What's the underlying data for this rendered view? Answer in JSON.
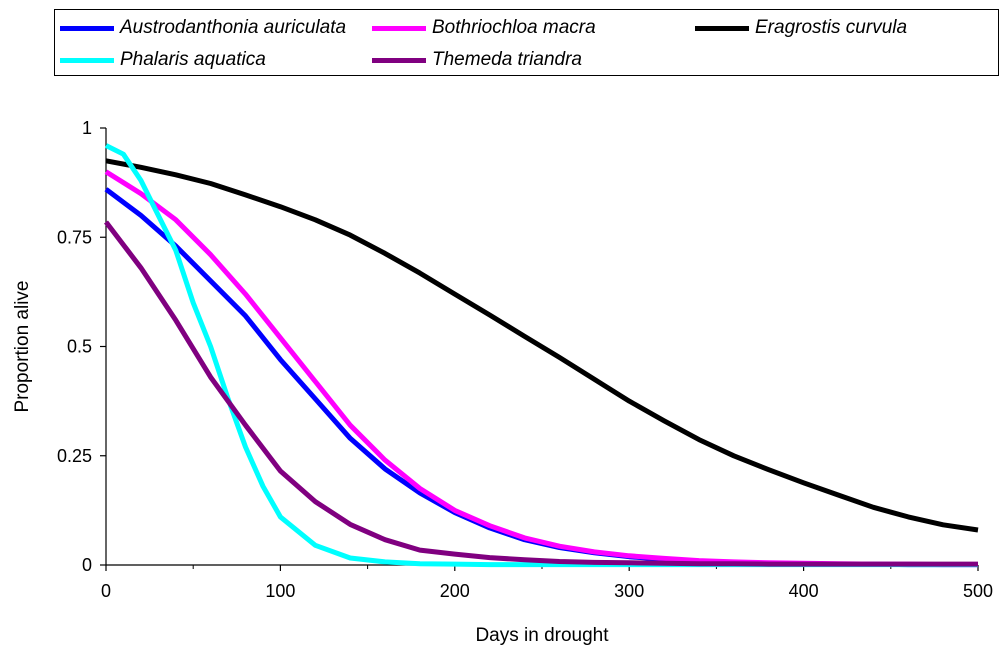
{
  "chart_data": {
    "type": "line",
    "xlabel": "Days in drought",
    "ylabel": "Proportion alive",
    "xlim": [
      0,
      500
    ],
    "ylim": [
      0,
      1
    ],
    "x_ticks": [
      0,
      100,
      200,
      300,
      400,
      500
    ],
    "y_ticks": [
      0,
      0.25,
      0.5,
      0.75,
      1
    ],
    "x_tick_labels": [
      "0",
      "100",
      "200",
      "300",
      "400",
      "500"
    ],
    "y_tick_labels": [
      "0",
      "0.25",
      "0.5",
      "0.75",
      "1"
    ],
    "grid": false,
    "legend_position": "top",
    "series": [
      {
        "name": "Austrodanthonia auriculata",
        "color": "#0000ff",
        "x": [
          0,
          20,
          40,
          60,
          80,
          100,
          120,
          140,
          160,
          180,
          200,
          220,
          240,
          260,
          280,
          300,
          320,
          340,
          360,
          380,
          400,
          420,
          440,
          460,
          480,
          500
        ],
        "y": [
          0.86,
          0.8,
          0.73,
          0.65,
          0.57,
          0.47,
          0.38,
          0.29,
          0.22,
          0.165,
          0.12,
          0.085,
          0.058,
          0.04,
          0.028,
          0.019,
          0.013,
          0.009,
          0.006,
          0.004,
          0.003,
          0.002,
          0.002,
          0.001,
          0.001,
          0.001
        ]
      },
      {
        "name": "Bothriochloa macra",
        "color": "#ff00ff",
        "x": [
          0,
          20,
          40,
          60,
          80,
          100,
          120,
          140,
          160,
          180,
          200,
          220,
          240,
          260,
          280,
          300,
          320,
          340,
          360,
          380,
          400,
          420,
          440,
          460,
          480,
          500
        ],
        "y": [
          0.9,
          0.85,
          0.79,
          0.71,
          0.62,
          0.52,
          0.42,
          0.32,
          0.24,
          0.175,
          0.125,
          0.09,
          0.062,
          0.043,
          0.03,
          0.021,
          0.015,
          0.01,
          0.007,
          0.005,
          0.004,
          0.003,
          0.002,
          0.002,
          0.001,
          0.001
        ]
      },
      {
        "name": "Eragrostis curvula",
        "color": "#000000",
        "x": [
          0,
          20,
          40,
          60,
          80,
          100,
          120,
          140,
          160,
          180,
          200,
          220,
          240,
          260,
          280,
          300,
          320,
          340,
          360,
          380,
          400,
          420,
          440,
          460,
          480,
          500
        ],
        "y": [
          0.925,
          0.91,
          0.893,
          0.873,
          0.847,
          0.82,
          0.79,
          0.755,
          0.713,
          0.668,
          0.62,
          0.572,
          0.523,
          0.475,
          0.425,
          0.375,
          0.33,
          0.287,
          0.25,
          0.218,
          0.188,
          0.16,
          0.132,
          0.11,
          0.092,
          0.08
        ]
      },
      {
        "name": "Phalaris aquatica",
        "color": "#00ffff",
        "x": [
          0,
          10,
          20,
          30,
          40,
          50,
          60,
          70,
          80,
          90,
          100,
          120,
          140,
          160,
          180,
          200,
          220,
          240,
          260,
          280,
          300,
          350,
          400,
          450,
          500
        ],
        "y": [
          0.96,
          0.94,
          0.88,
          0.8,
          0.72,
          0.6,
          0.5,
          0.38,
          0.27,
          0.18,
          0.11,
          0.045,
          0.016,
          0.007,
          0.003,
          0.002,
          0.001,
          0.001,
          0.001,
          0.001,
          0.001,
          0.001,
          0.001,
          0.001,
          0.001
        ]
      },
      {
        "name": "Themeda triandra",
        "color": "#800080",
        "x": [
          0,
          20,
          40,
          60,
          80,
          100,
          120,
          140,
          160,
          180,
          200,
          220,
          240,
          260,
          280,
          300,
          320,
          340,
          360,
          380,
          400,
          420,
          440,
          460,
          480,
          500
        ],
        "y": [
          0.785,
          0.68,
          0.56,
          0.43,
          0.32,
          0.215,
          0.145,
          0.093,
          0.058,
          0.034,
          0.025,
          0.017,
          0.012,
          0.008,
          0.006,
          0.005,
          0.004,
          0.003,
          0.003,
          0.002,
          0.002,
          0.002,
          0.002,
          0.002,
          0.002,
          0.002
        ]
      }
    ]
  }
}
